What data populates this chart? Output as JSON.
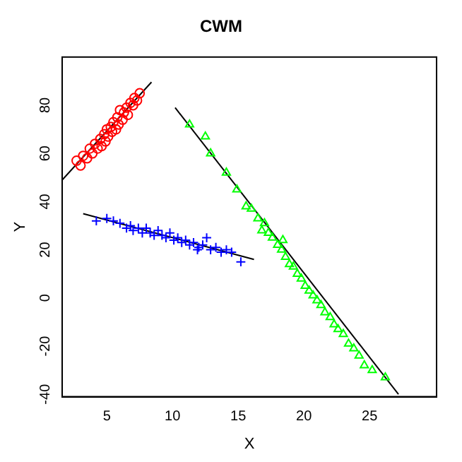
{
  "chart_data": {
    "type": "scatter",
    "title": "CWM",
    "xlabel": "X",
    "ylabel": "Y",
    "xlim": [
      1.6,
      30.1
    ],
    "ylim": [
      -41,
      100
    ],
    "xticks": [
      5,
      10,
      15,
      20,
      25
    ],
    "yticks": [
      -40,
      -20,
      0,
      20,
      40,
      60,
      80
    ],
    "grid": false,
    "legend": false,
    "series": [
      {
        "color": "#ff0000",
        "marker": "circle",
        "x": [
          2.7,
          3.0,
          3.2,
          3.5,
          3.7,
          3.9,
          4.1,
          4.3,
          4.5,
          4.6,
          4.8,
          4.9,
          5.0,
          5.1,
          5.3,
          5.4,
          5.5,
          5.7,
          5.8,
          5.9,
          6.0,
          6.2,
          6.3,
          6.5,
          6.6,
          6.8,
          7.0,
          7.1,
          7.3,
          7.5
        ],
        "values": [
          57,
          55,
          59,
          58,
          62,
          60,
          64,
          62,
          66,
          63,
          68,
          65,
          70,
          67,
          71,
          69,
          73,
          70,
          75,
          72,
          78,
          74,
          77,
          79,
          76,
          81,
          80,
          83,
          82,
          85
        ]
      },
      {
        "color": "#0000ff",
        "marker": "cross",
        "x": [
          4.2,
          5.0,
          5.5,
          6.0,
          6.5,
          6.8,
          7.0,
          7.4,
          7.7,
          8.0,
          8.3,
          8.6,
          8.9,
          9.2,
          9.5,
          9.8,
          10.1,
          10.4,
          10.7,
          11.0,
          11.3,
          11.6,
          12.0,
          12.3,
          12.6,
          12.9,
          13.3,
          13.7,
          14.1,
          14.5,
          15.2,
          11.9
        ],
        "values": [
          32,
          33,
          32,
          31,
          29,
          30,
          28,
          29,
          27,
          29,
          27,
          26,
          28,
          26,
          25,
          27,
          24,
          25,
          23,
          24,
          22,
          23,
          21,
          22,
          25,
          20,
          21,
          19,
          20,
          19,
          15,
          20
        ]
      },
      {
        "color": "#00ff00",
        "marker": "triangle",
        "x": [
          11.3,
          12.5,
          12.9,
          14.1,
          14.9,
          15.6,
          16.0,
          16.5,
          17.0,
          17.3,
          17.6,
          18.0,
          18.3,
          18.6,
          18.9,
          19.2,
          19.5,
          19.8,
          20.1,
          20.4,
          20.7,
          21.0,
          21.3,
          21.6,
          22.0,
          22.3,
          22.6,
          23.0,
          23.4,
          23.8,
          24.2,
          24.6,
          25.2,
          26.2,
          16.8,
          18.4
        ],
        "values": [
          72,
          67,
          60,
          52,
          45,
          38,
          37,
          33,
          31,
          27,
          25,
          22,
          20,
          17,
          14,
          13,
          10,
          8,
          5,
          3,
          1,
          -1,
          -3,
          -6,
          -8,
          -11,
          -13,
          -15,
          -19,
          -21,
          -24,
          -28,
          -30,
          -33,
          28,
          24
        ]
      },
      {
        "type": "line",
        "color": "#000000",
        "marker": "none",
        "x": [
          1.6,
          8.4
        ],
        "values": [
          49,
          89.6
        ]
      },
      {
        "type": "line",
        "color": "#000000",
        "marker": "none",
        "x": [
          3.2,
          16.2
        ],
        "values": [
          35,
          16
        ]
      },
      {
        "type": "line",
        "color": "#000000",
        "marker": "none",
        "x": [
          10.2,
          27.2
        ],
        "values": [
          79,
          -40
        ]
      }
    ]
  }
}
